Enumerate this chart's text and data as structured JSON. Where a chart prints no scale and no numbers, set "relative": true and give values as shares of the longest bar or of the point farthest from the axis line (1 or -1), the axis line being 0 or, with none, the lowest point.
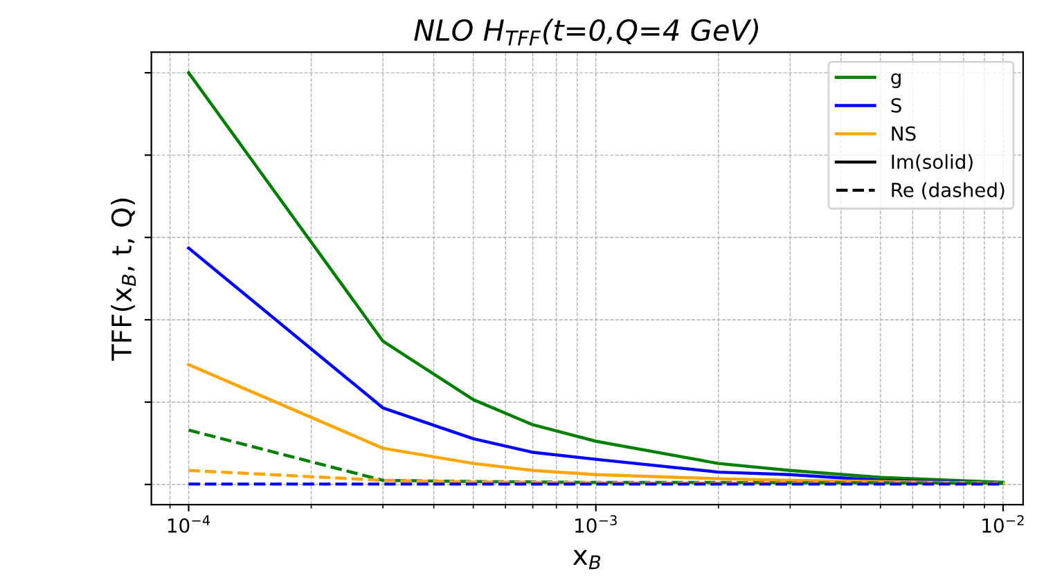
{
  "chart_data": {
    "type": "line",
    "title": "NLO H$_{TFF}$(t=0,Q=4 GeV)",
    "xlabel": "x$_{B}$",
    "ylabel": "TFF(x$_{B}$, t, Q)",
    "x": [
      0.0001,
      0.0003,
      0.0005,
      0.0007,
      0.001,
      0.002,
      0.003,
      0.005,
      0.01
    ],
    "relative": true,
    "log": "x",
    "xlim": [
      8.1e-05,
      0.0112
    ],
    "xticks": [
      {
        "value": 0.0001,
        "label": "10$^{−4}$"
      },
      {
        "value": 0.001,
        "label": "10$^{−3}$"
      },
      {
        "value": 0.01,
        "label": "10$^{−2}$"
      }
    ],
    "series": [
      {
        "name": "g",
        "color": "#008000",
        "line_style": "solid",
        "values": [
          1.0,
          0.348,
          0.206,
          0.145,
          0.105,
          0.051,
          0.034,
          0.017,
          0.005
        ]
      },
      {
        "name": "S",
        "color": "#0000ff",
        "line_style": "solid",
        "values": [
          0.574,
          0.186,
          0.111,
          0.078,
          0.061,
          0.03,
          0.024,
          0.01,
          0.003
        ]
      },
      {
        "name": "NS",
        "color": "#ffa500",
        "line_style": "solid",
        "values": [
          0.291,
          0.088,
          0.051,
          0.034,
          0.024,
          0.014,
          0.01,
          0.007,
          0.003
        ]
      },
      {
        "color": "#008000",
        "line_style": "dashed",
        "values": [
          0.132,
          0.01,
          0.007,
          0.006,
          0.005,
          0.005,
          0.004,
          0.004,
          0.003
        ]
      },
      {
        "color": "#ffa500",
        "line_style": "dashed",
        "values": [
          0.034,
          0.01,
          0.006,
          0.005,
          0.004,
          0.003,
          0.003,
          0.002,
          0.002
        ]
      },
      {
        "color": "#0000ff",
        "line_style": "dashed",
        "values": [
          0.001,
          0.001,
          0.001,
          0.001,
          0.001,
          0.001,
          0.001,
          0.001,
          0.001
        ]
      }
    ],
    "annotations": [
      "Im(solid)",
      "Re (dashed)"
    ],
    "grid": true,
    "legend": "top right",
    "tick_labels": "x"
  }
}
